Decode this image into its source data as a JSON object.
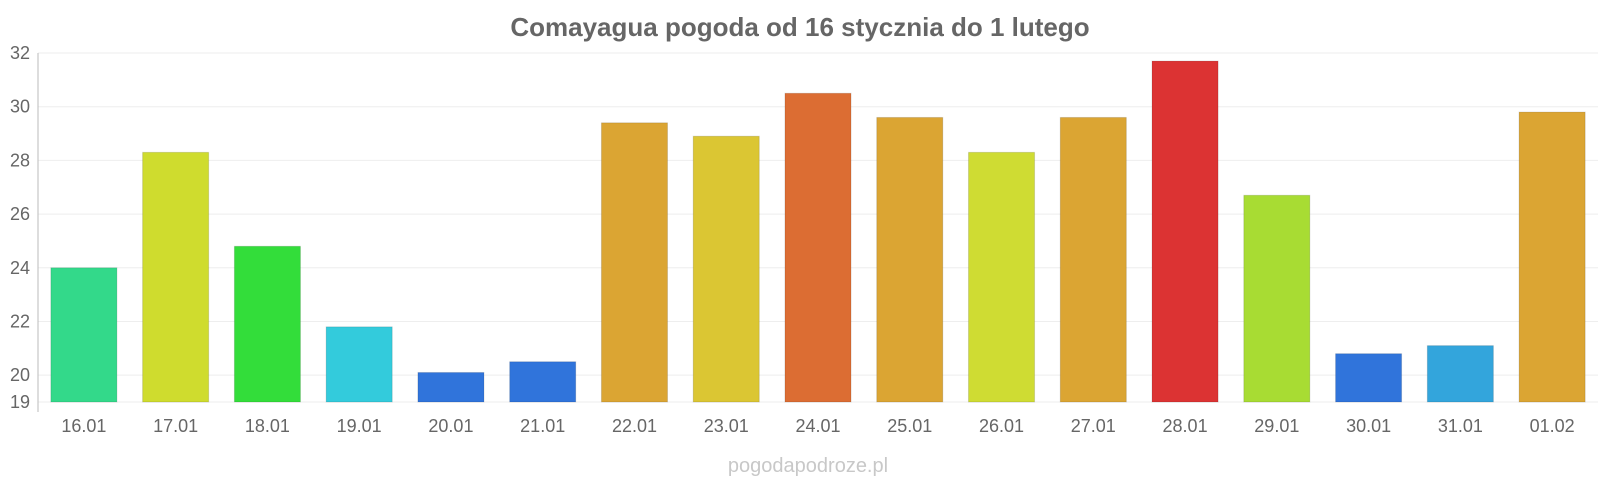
{
  "chart_data": {
    "type": "bar",
    "title": "Comayagua pogoda od 16 stycznia do 1 lutego",
    "xlabel": "",
    "ylabel": "",
    "categories": [
      "16.01",
      "17.01",
      "18.01",
      "19.01",
      "20.01",
      "21.01",
      "22.01",
      "23.01",
      "24.01",
      "25.01",
      "26.01",
      "27.01",
      "28.01",
      "29.01",
      "30.01",
      "31.01",
      "01.02"
    ],
    "values": [
      24.0,
      28.3,
      24.8,
      21.8,
      20.1,
      20.5,
      29.4,
      28.9,
      30.5,
      29.6,
      28.3,
      29.6,
      31.7,
      26.7,
      20.8,
      21.1,
      29.8
    ],
    "colors": [
      "#33d98a",
      "#cfdc2e",
      "#33dd3a",
      "#33cbdc",
      "#3074db",
      "#3074db",
      "#dba533",
      "#dbc633",
      "#dc6d33",
      "#dba533",
      "#cfdc33",
      "#dba533",
      "#dc3333",
      "#a8dc33",
      "#3074db",
      "#33a5dc",
      "#dba533"
    ],
    "ylim": [
      19,
      32
    ],
    "yticks": [
      19,
      20,
      22,
      24,
      26,
      28,
      30,
      32
    ],
    "grid": true,
    "legend": "none"
  },
  "watermark": "pogodapodroze.pl"
}
